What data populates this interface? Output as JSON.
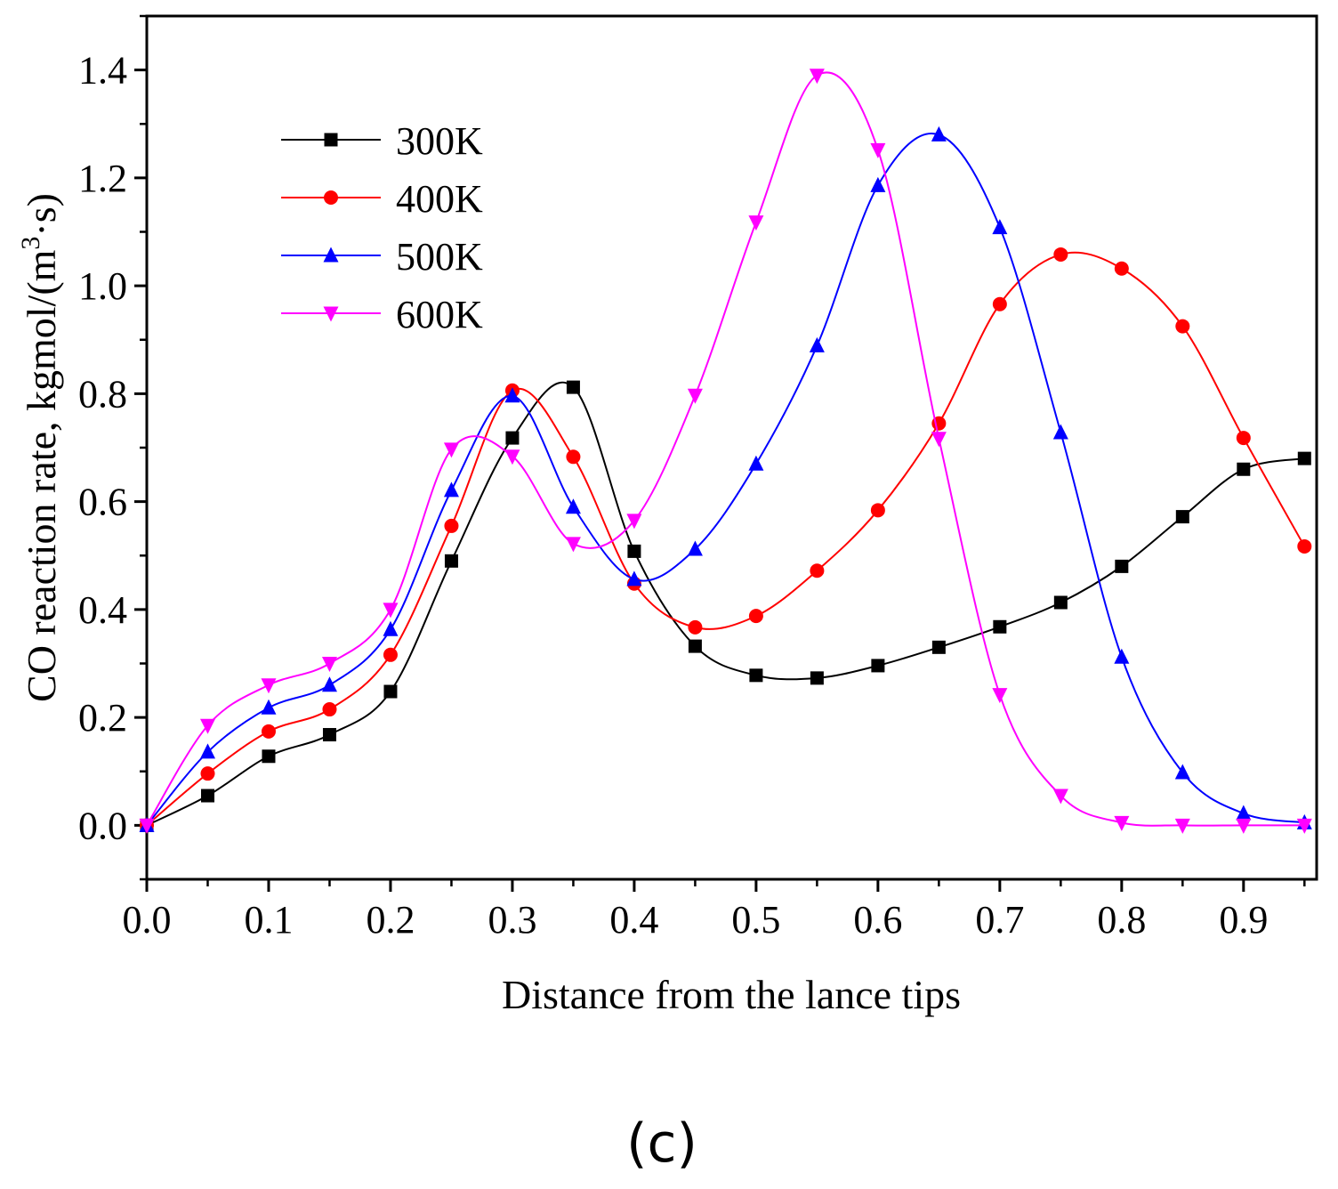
{
  "chart_data": {
    "type": "line",
    "title": "",
    "xlabel": "Distance from the lance tips",
    "ylabel_main": "CO reaction rate, kgmol/(m",
    "ylabel_sup": "3",
    "ylabel_tail": "·s)",
    "xlim": [
      0.0,
      0.96
    ],
    "ylim": [
      -0.1,
      1.5
    ],
    "xticks": [
      "0.0",
      "0.1",
      "0.2",
      "0.3",
      "0.4",
      "0.5",
      "0.6",
      "0.7",
      "0.8",
      "0.9"
    ],
    "xtick_values": [
      0.0,
      0.1,
      0.2,
      0.3,
      0.4,
      0.5,
      0.6,
      0.7,
      0.8,
      0.9
    ],
    "yticks": [
      "0.0",
      "0.2",
      "0.4",
      "0.6",
      "0.8",
      "1.0",
      "1.2",
      "1.4"
    ],
    "ytick_values": [
      0.0,
      0.2,
      0.4,
      0.6,
      0.8,
      1.0,
      1.2,
      1.4
    ],
    "legend_position": "top-left",
    "x": [
      0.0,
      0.05,
      0.1,
      0.15,
      0.2,
      0.25,
      0.3,
      0.35,
      0.4,
      0.45,
      0.5,
      0.55,
      0.6,
      0.65,
      0.7,
      0.75,
      0.8,
      0.85,
      0.9,
      0.95
    ],
    "series": [
      {
        "name": "300K",
        "color": "#000000",
        "marker": "square",
        "values": [
          0.0,
          0.055,
          0.128,
          0.168,
          0.248,
          0.49,
          0.718,
          0.812,
          0.508,
          0.332,
          0.278,
          0.273,
          0.296,
          0.33,
          0.368,
          0.413,
          0.48,
          0.572,
          0.66,
          0.68
        ]
      },
      {
        "name": "400K",
        "color": "#ff0000",
        "marker": "circle",
        "values": [
          0.0,
          0.096,
          0.174,
          0.215,
          0.316,
          0.555,
          0.806,
          0.683,
          0.448,
          0.367,
          0.388,
          0.472,
          0.584,
          0.745,
          0.966,
          1.058,
          1.032,
          0.925,
          0.718,
          0.517
        ]
      },
      {
        "name": "500K",
        "color": "#0000ff",
        "marker": "triangle-up",
        "values": [
          0.0,
          0.136,
          0.218,
          0.26,
          0.363,
          0.621,
          0.796,
          0.59,
          0.456,
          0.512,
          0.67,
          0.889,
          1.186,
          1.28,
          1.108,
          0.728,
          0.312,
          0.098,
          0.022,
          0.005
        ]
      },
      {
        "name": "600K",
        "color": "#ff00ff",
        "marker": "triangle-down",
        "values": [
          0.0,
          0.185,
          0.26,
          0.3,
          0.4,
          0.697,
          0.684,
          0.522,
          0.565,
          0.797,
          1.118,
          1.39,
          1.252,
          0.717,
          0.242,
          0.055,
          0.005,
          0.0,
          0.0,
          0.0
        ]
      }
    ]
  },
  "caption": "(c)"
}
